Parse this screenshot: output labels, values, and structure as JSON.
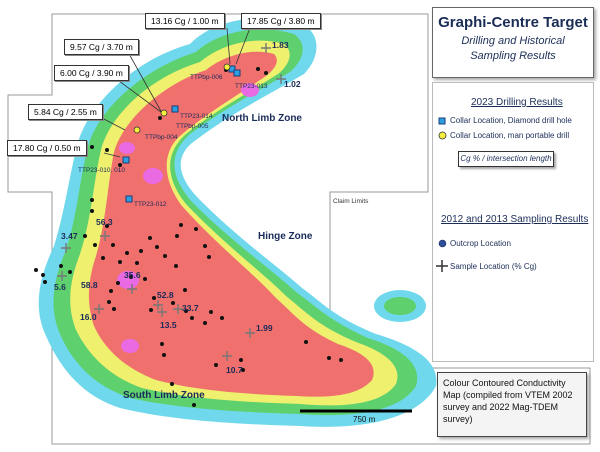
{
  "title": {
    "main": "Graphi-Centre Target",
    "sub_line1": "Drilling and Historical",
    "sub_line2": "Sampling Results"
  },
  "legend_2023": {
    "title": "2023 Drilling Results",
    "diamond_label": "Collar Location, Diamond drill hole",
    "portable_label": "Collar Location, man portable drill",
    "cg_note": "Cg % / intersection length"
  },
  "legend_2012": {
    "title": "2012 and 2013 Sampling Results",
    "outcrop_label": "Outcrop Location",
    "sample_label": "Sample Location (% Cg)"
  },
  "conductivity_note": "Colour Contoured Conductivity Map (compiled from VTEM 2002 survey and 2022 Mag-TDEM survey)",
  "claim_label": "Claim Limits",
  "scale_label": "750 m",
  "zones": {
    "north": "North Limb Zone",
    "hinge": "Hinge Zone",
    "south": "South Limb Zone"
  },
  "callouts": {
    "c1": "13.16 Cg / 1.00 m",
    "c2": "17.85 Cg / 3.80 m",
    "c3": "9.57 Cg / 3.70 m",
    "c4": "6.00 Cg / 3.90 m",
    "c5": "5.84 Cg / 2.55 m",
    "c6": "17.80 Cg / 0.50 m"
  },
  "holes": {
    "h1": "TTPbp-006",
    "h2": "TTP23-013",
    "h3": "TTP23-014",
    "h4": "TTPbp-005",
    "h5": "TTPbp-004",
    "h6": "TTP23-010, 010",
    "h7": "TTP23-012"
  },
  "samples": {
    "s1": "1.83",
    "s2": "1.02",
    "s3": "3.47",
    "s4": "56.3",
    "s5": "5.6",
    "s6": "58.8",
    "s7": "35.6",
    "s8": "16.0",
    "s9": "52.8",
    "s10": "33.7",
    "s11": "13.5",
    "s12": "1.99",
    "s13": "10.7"
  },
  "colors": {
    "cyan": "#70d8ec",
    "green": "#5fd06e",
    "yellow": "#eef06e",
    "red": "#f0706e",
    "magenta": "#e96ae2",
    "diamond": "#2b9fe0",
    "portable": "#f5ee3c",
    "outcrop": "#2d4f9a"
  }
}
